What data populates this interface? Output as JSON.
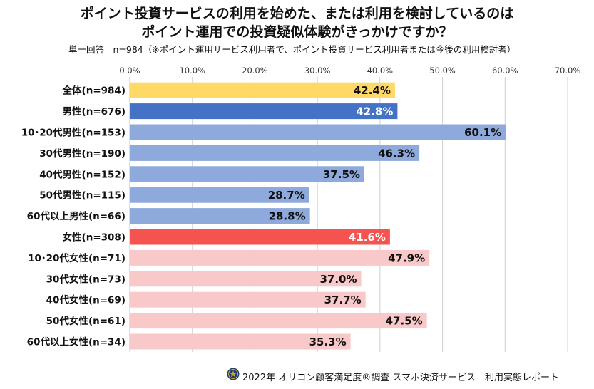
{
  "header": {
    "title_line1": "ポイント投資サービスの利用を始めた、または利用を検討しているのは",
    "title_line2": "ポイント運用での投資疑似体験がきっかけですか？",
    "subtitle": "単一回答　n=984（※ポイント運用サービス利用者で、ポイント投資サービス利用者または今後の利用検討者）"
  },
  "footer": {
    "text": "2022年 オリコン顧客満足度®調査 スマホ決済サービス　利用実態レポート",
    "logo_icon": "oricon-seal-icon"
  },
  "colors": {
    "total": "#FFD966",
    "male": "#4472C4",
    "male_sub": "#8EA9DB",
    "female": "#F4534F",
    "female_sub": "#F9C9CA",
    "grid": "#D0D0D0"
  },
  "chart_data": {
    "type": "bar",
    "orientation": "horizontal",
    "xlim": [
      0,
      70
    ],
    "ticks": [
      "0.0%",
      "10.0%",
      "20.0%",
      "30.0%",
      "40.0%",
      "50.0%",
      "60.0%",
      "70.0%"
    ],
    "tick_values": [
      0,
      10,
      20,
      30,
      40,
      50,
      60,
      70
    ],
    "grid": true,
    "categories": [
      "全体(n=984)",
      "男性(n=676)",
      "10･20代男性(n=153)",
      "30代男性(n=190)",
      "40代男性(n=152)",
      "50代男性(n=115)",
      "60代以上男性(n=66)",
      "女性(n=308)",
      "10･20代女性(n=71)",
      "30代女性(n=73)",
      "40代女性(n=69)",
      "50代女性(n=61)",
      "60代以上女性(n=34)"
    ],
    "values": [
      42.4,
      42.8,
      60.1,
      46.3,
      37.5,
      28.7,
      28.8,
      41.6,
      47.9,
      37.0,
      37.7,
      47.5,
      35.3
    ],
    "value_labels": [
      "42.4%",
      "42.8%",
      "60.1%",
      "46.3%",
      "37.5%",
      "28.7%",
      "28.8%",
      "41.6%",
      "47.9%",
      "37.0%",
      "37.7%",
      "47.5%",
      "35.3%"
    ],
    "groups": [
      "total",
      "male",
      "male_sub",
      "male_sub",
      "male_sub",
      "male_sub",
      "male_sub",
      "female",
      "female_sub",
      "female_sub",
      "female_sub",
      "female_sub",
      "female_sub"
    ]
  }
}
